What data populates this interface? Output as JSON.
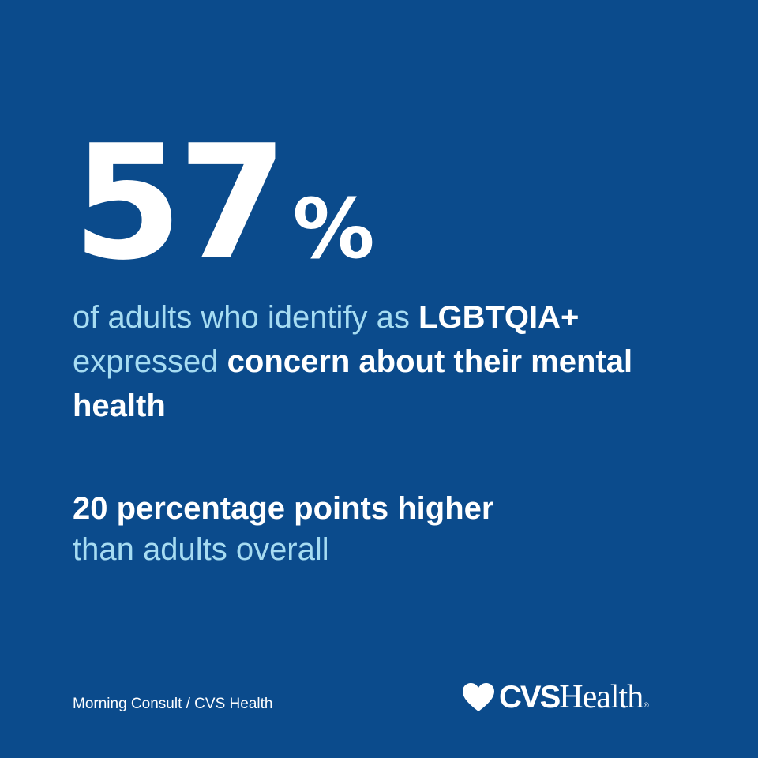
{
  "stat": {
    "value": "57",
    "unit": "%"
  },
  "statement": {
    "part1": "of adults who identify as ",
    "highlight1": "LGBTQIA+",
    "part2": "expressed ",
    "highlight2": "concern about their mental health"
  },
  "comparison": {
    "highlight": "20 percentage points higher",
    "rest": "than adults overall"
  },
  "source": "Morning Consult / CVS Health",
  "logo": {
    "brand": "CVS",
    "word": "Health",
    "reg": "®",
    "icon": "heart-icon"
  },
  "colors": {
    "background": "#0b4b8c",
    "accent_light": "#a6dcf2",
    "text": "#ffffff"
  }
}
